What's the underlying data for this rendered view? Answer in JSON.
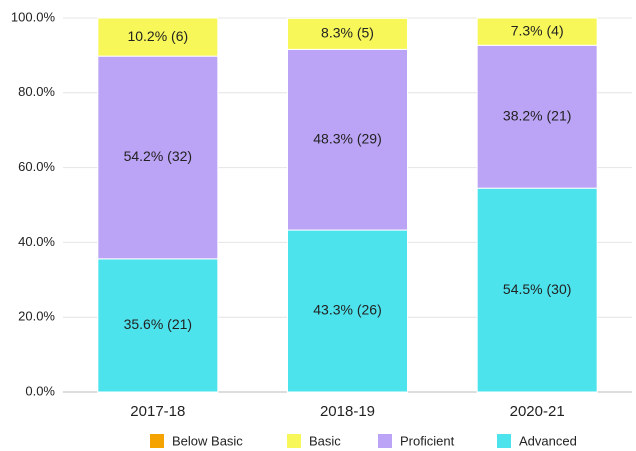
{
  "chart_data": {
    "type": "stacked_bar",
    "categories": [
      "2017-18",
      "2018-19",
      "2020-21"
    ],
    "series": [
      {
        "name": "Advanced",
        "color": "#4de3ec",
        "values": [
          35.6,
          43.3,
          54.5
        ],
        "value_labels": [
          "35.6% (21)",
          "43.3% (26)",
          "54.5% (30)"
        ]
      },
      {
        "name": "Proficient",
        "color": "#bba4f5",
        "values": [
          54.2,
          48.3,
          38.2
        ],
        "value_labels": [
          "54.2% (32)",
          "48.3% (29)",
          "38.2% (21)"
        ]
      },
      {
        "name": "Basic",
        "color": "#f7f75a",
        "values": [
          10.2,
          8.3,
          7.3
        ],
        "value_labels": [
          "10.2% (6)",
          "8.3% (5)",
          "7.3% (4)"
        ]
      },
      {
        "name": "Below Basic",
        "color": "#f5a300",
        "values": [
          0,
          0,
          0
        ]
      }
    ],
    "legend_order": [
      "Below Basic",
      "Basic",
      "Proficient",
      "Advanced"
    ],
    "ylim": [
      0,
      100
    ],
    "yticks": [
      {
        "value": 0,
        "label": "0.0%"
      },
      {
        "value": 20,
        "label": "20.0%"
      },
      {
        "value": 40,
        "label": "40.0%"
      },
      {
        "value": 60,
        "label": "60.0%"
      },
      {
        "value": 80,
        "label": "80.0%"
      },
      {
        "value": 100,
        "label": "100.0%"
      }
    ],
    "grid": true
  }
}
